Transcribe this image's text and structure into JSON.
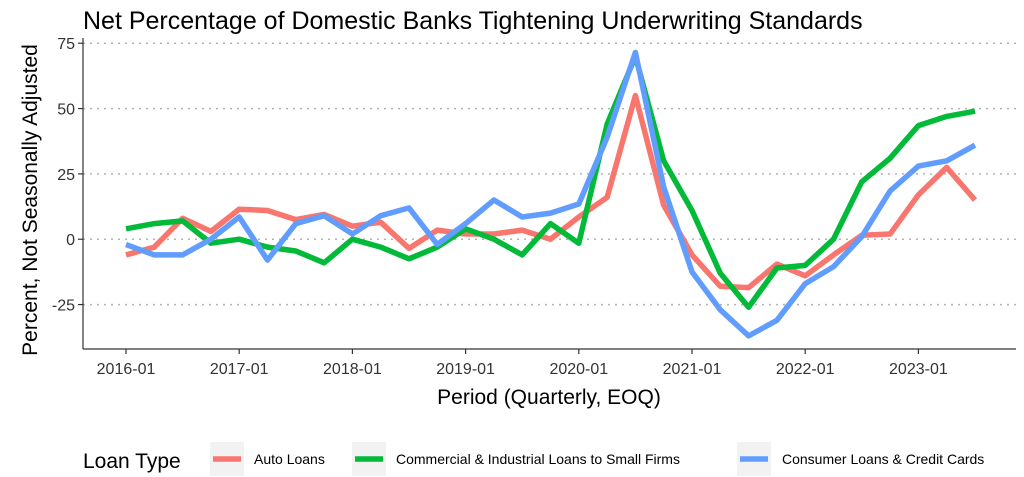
{
  "colors": {
    "auto": "#F8766D",
    "cni": "#00BA38",
    "consumer": "#619CFF"
  },
  "chart_data": {
    "type": "line",
    "title": "Net Percentage of Domestic Banks Tightening Underwriting Standards",
    "xlabel": "Period (Quarterly, EOQ)",
    "ylabel": "Percent, Not Seasonally Adjusted",
    "x": [
      "2016-01",
      "2016-04",
      "2016-07",
      "2016-10",
      "2017-01",
      "2017-04",
      "2017-07",
      "2017-10",
      "2018-01",
      "2018-04",
      "2018-07",
      "2018-10",
      "2019-01",
      "2019-04",
      "2019-07",
      "2019-10",
      "2020-01",
      "2020-04",
      "2020-07",
      "2020-10",
      "2021-01",
      "2021-04",
      "2021-07",
      "2021-10",
      "2022-01",
      "2022-04",
      "2022-07",
      "2022-10",
      "2023-01",
      "2023-04",
      "2023-07"
    ],
    "x_ticks": [
      "2016-01",
      "2017-01",
      "2018-01",
      "2019-01",
      "2020-01",
      "2021-01",
      "2022-01",
      "2023-01"
    ],
    "y_ticks": [
      75,
      50,
      25,
      0,
      -25
    ],
    "y_tick_labels": [
      "75",
      "50",
      "25",
      "0",
      "-25"
    ],
    "ylim": [
      -42,
      77
    ],
    "grid": "horizontal dotted",
    "legend": {
      "title": "Loan Type",
      "position": "bottom"
    },
    "series": [
      {
        "name": "Auto Loans",
        "color": "#F8766D",
        "values": [
          -6,
          -3,
          8,
          3,
          11.5,
          11,
          7.5,
          9.5,
          5,
          6.5,
          -3.5,
          3.5,
          2,
          2,
          3.5,
          0,
          8.5,
          16,
          55,
          13,
          -6,
          -18,
          -18.5,
          -9.5,
          -14,
          -6,
          1.5,
          2,
          17,
          27.5,
          15
        ]
      },
      {
        "name": "Commercial & Industrial Loans to Small Firms",
        "color": "#00BA38",
        "values": [
          4,
          6,
          7,
          -1.5,
          0,
          -3,
          -4.5,
          -9,
          0,
          -3,
          -7.5,
          -3,
          4,
          0,
          -6,
          6,
          -1.5,
          44,
          70,
          30,
          11,
          -13,
          -26,
          -11,
          -10,
          0,
          22,
          31,
          43.5,
          47,
          49
        ]
      },
      {
        "name": "Consumer Loans & Credit Cards",
        "color": "#619CFF",
        "values": [
          -2,
          -6,
          -6,
          0,
          8.5,
          -8,
          6,
          9,
          2,
          9,
          12,
          -2,
          6,
          15,
          8.5,
          10,
          13.5,
          39,
          71.5,
          20,
          -12.5,
          -27,
          -37,
          -31,
          -17,
          -10.5,
          1,
          18.5,
          28,
          30,
          36
        ]
      }
    ]
  }
}
